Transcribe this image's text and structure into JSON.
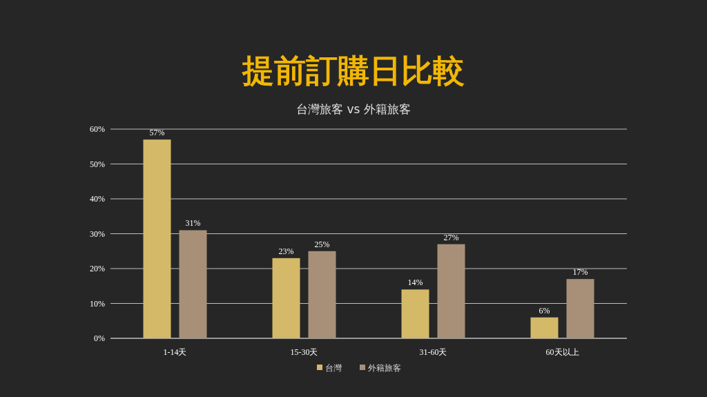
{
  "chart_data": {
    "type": "bar",
    "title": "提前訂購日比較",
    "subtitle": "台灣旅客 vs 外籍旅客",
    "categories": [
      "1-14天",
      "15-30天",
      "31-60天",
      "60天以上"
    ],
    "series": [
      {
        "name": "台灣",
        "color": "#d4b968",
        "values": [
          57,
          23,
          14,
          6
        ],
        "value_labels": [
          "57%",
          "23%",
          "14%",
          "6%"
        ]
      },
      {
        "name": "外籍旅客",
        "color": "#a89078",
        "values": [
          31,
          25,
          27,
          17
        ],
        "value_labels": [
          "31%",
          "25%",
          "27%",
          "17%"
        ]
      }
    ],
    "ylim": [
      0,
      60
    ],
    "yticks": [
      {
        "value": 0,
        "label": "0%"
      },
      {
        "value": 10,
        "label": "10%"
      },
      {
        "value": 20,
        "label": "20%"
      },
      {
        "value": 30,
        "label": "30%"
      },
      {
        "value": 40,
        "label": "40%"
      },
      {
        "value": 50,
        "label": "50%"
      },
      {
        "value": 60,
        "label": "60%"
      }
    ],
    "grid": "y",
    "legend": "bottom"
  }
}
